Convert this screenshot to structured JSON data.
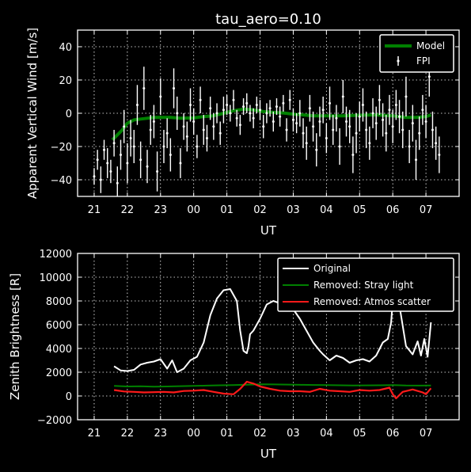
{
  "colors": {
    "background": "#000000",
    "foreground": "#ffffff",
    "model": "#008000",
    "stray": "#008000",
    "atmos": "#ff1a1a",
    "original": "#ffffff"
  },
  "chart_data": [
    {
      "type": "line",
      "title": "tau_aero=0.10",
      "xlabel": "UT",
      "ylabel": "Apparent Vertical Wind [m/s]",
      "xtick_labels": [
        "21",
        "22",
        "23",
        "00",
        "01",
        "02",
        "03",
        "04",
        "05",
        "06",
        "07"
      ],
      "xlim": [
        20.5,
        32.0
      ],
      "ylim": [
        -50,
        50
      ],
      "yticks": [
        -40,
        -20,
        0,
        20,
        40
      ],
      "ytick_labels": [
        "−40",
        "−20",
        "0",
        "20",
        "40"
      ],
      "grid": true,
      "legend_position": "top-right",
      "legend": [
        "Model",
        "FPI"
      ],
      "series": [
        {
          "name": "Model",
          "x": [
            21.55,
            21.7,
            21.85,
            22.0,
            22.2,
            22.4,
            22.6,
            22.8,
            23.0,
            23.3,
            23.6,
            24.0,
            24.3,
            24.6,
            24.9,
            25.2,
            25.5,
            25.8,
            26.1,
            26.4,
            26.7,
            27.0,
            27.3,
            27.6,
            28.0,
            28.5,
            29.0,
            29.5,
            30.0,
            30.4,
            30.7,
            31.0,
            31.15
          ],
          "y": [
            -16,
            -13,
            -10,
            -6,
            -4,
            -3.5,
            -3,
            -2.5,
            -2.5,
            -2.5,
            -3,
            -2.8,
            -2,
            -1.5,
            0,
            1.5,
            2.5,
            2,
            1,
            0.5,
            0.2,
            -0.5,
            -1,
            -1.5,
            -1.5,
            -1.5,
            -1.2,
            -1,
            -1.5,
            -2.5,
            -2.5,
            -2,
            -1
          ]
        },
        {
          "name": "FPI",
          "x": [
            21.0,
            21.1,
            21.2,
            21.3,
            21.4,
            21.5,
            21.6,
            21.7,
            21.8,
            21.9,
            22.0,
            22.1,
            22.2,
            22.3,
            22.4,
            22.5,
            22.6,
            22.7,
            22.8,
            22.9,
            23.0,
            23.1,
            23.2,
            23.3,
            23.4,
            23.5,
            23.6,
            23.7,
            23.8,
            23.9,
            24.0,
            24.1,
            24.2,
            24.3,
            24.4,
            24.5,
            24.6,
            24.7,
            24.8,
            24.9,
            25.0,
            25.1,
            25.2,
            25.3,
            25.4,
            25.5,
            25.6,
            25.7,
            25.8,
            25.9,
            26.0,
            26.1,
            26.2,
            26.3,
            26.4,
            26.5,
            26.6,
            26.7,
            26.8,
            26.9,
            27.0,
            27.1,
            27.2,
            27.3,
            27.4,
            27.5,
            27.6,
            27.7,
            27.8,
            27.9,
            28.0,
            28.1,
            28.2,
            28.3,
            28.4,
            28.5,
            28.6,
            28.7,
            28.8,
            28.9,
            29.0,
            29.1,
            29.2,
            29.3,
            29.4,
            29.5,
            29.6,
            29.7,
            29.8,
            29.9,
            30.0,
            30.1,
            30.2,
            30.3,
            30.4,
            30.5,
            30.6,
            30.7,
            30.8,
            30.9,
            31.0,
            31.1,
            31.2,
            31.3,
            31.4
          ],
          "y": [
            -38,
            -28,
            -40,
            -22,
            -30,
            -35,
            -18,
            -42,
            -25,
            -8,
            -30,
            -15,
            -20,
            5,
            -28,
            15,
            -32,
            -10,
            -5,
            -35,
            10,
            -20,
            -12,
            -25,
            15,
            0,
            -30,
            -8,
            -14,
            5,
            -5,
            -20,
            8,
            -10,
            -15,
            3,
            -8,
            0,
            -12,
            2,
            5,
            0,
            8,
            -3,
            -7,
            4,
            6,
            0,
            -3,
            5,
            2,
            -8,
            0,
            3,
            -5,
            4,
            -2,
            6,
            -10,
            8,
            -4,
            -6,
            0,
            -12,
            -18,
            3,
            -8,
            -22,
            -5,
            2,
            -15,
            6,
            -10,
            -3,
            -20,
            10,
            -5,
            -8,
            -25,
            -12,
            -2,
            5,
            -10,
            -18,
            0,
            -6,
            8,
            -4,
            -12,
            2,
            -8,
            5,
            -2,
            -10,
            10,
            -20,
            -6,
            -28,
            -12,
            2,
            -5,
            22,
            -10,
            -18,
            -25
          ],
          "err": [
            5,
            6,
            8,
            6,
            9,
            7,
            8,
            10,
            9,
            10,
            12,
            11,
            10,
            12,
            11,
            13,
            10,
            9,
            10,
            12,
            11,
            10,
            9,
            10,
            12,
            10,
            9,
            8,
            9,
            10,
            8,
            7,
            8,
            9,
            8,
            7,
            8,
            6,
            7,
            8,
            6,
            5,
            6,
            5,
            6,
            5,
            6,
            5,
            6,
            5,
            6,
            7,
            6,
            5,
            6,
            5,
            6,
            5,
            7,
            6,
            7,
            6,
            8,
            9,
            10,
            8,
            9,
            10,
            9,
            8,
            9,
            10,
            9,
            8,
            11,
            10,
            9,
            10,
            11,
            12,
            9,
            10,
            11,
            10,
            9,
            10,
            9,
            10,
            11,
            9,
            10,
            9,
            10,
            11,
            12,
            10,
            11,
            12,
            10,
            9,
            10,
            12,
            11,
            10,
            11
          ]
        }
      ]
    },
    {
      "type": "line",
      "title": "",
      "xlabel": "UT",
      "ylabel": "Zenith Brightness [R]",
      "xtick_labels": [
        "21",
        "22",
        "23",
        "00",
        "01",
        "02",
        "03",
        "04",
        "05",
        "06",
        "07"
      ],
      "xlim": [
        20.5,
        32.0
      ],
      "ylim": [
        -2000,
        12000
      ],
      "yticks": [
        -2000,
        0,
        2000,
        4000,
        6000,
        8000,
        10000,
        12000
      ],
      "ytick_labels": [
        "−2000",
        "0",
        "2000",
        "4000",
        "6000",
        "8000",
        "10000",
        "12000"
      ],
      "grid": true,
      "legend_position": "top-right",
      "legend": [
        "Original",
        "Removed: Stray light",
        "Removed: Atmos scatter"
      ],
      "series": [
        {
          "name": "Original",
          "x": [
            21.6,
            21.8,
            22.0,
            22.2,
            22.4,
            22.6,
            22.8,
            23.0,
            23.2,
            23.35,
            23.5,
            23.7,
            23.9,
            24.1,
            24.3,
            24.5,
            24.7,
            24.9,
            25.1,
            25.3,
            25.4,
            25.5,
            25.6,
            25.65,
            25.7,
            25.8,
            26.0,
            26.2,
            26.4,
            26.6,
            26.8,
            27.0,
            27.2,
            27.4,
            27.6,
            27.8,
            27.9,
            28.1,
            28.3,
            28.5,
            28.7,
            28.9,
            29.1,
            29.3,
            29.5,
            29.7,
            29.85,
            29.95,
            30.05,
            30.2,
            30.4,
            30.6,
            30.75,
            30.85,
            30.95,
            31.05,
            31.15
          ],
          "y": [
            2500,
            2150,
            2100,
            2200,
            2650,
            2800,
            2900,
            3100,
            2300,
            3000,
            2000,
            2300,
            3000,
            3300,
            4500,
            6800,
            8200,
            8900,
            9000,
            8000,
            5500,
            3800,
            3600,
            4200,
            5200,
            5500,
            6500,
            7700,
            8000,
            7800,
            7900,
            7300,
            6500,
            5500,
            4500,
            3800,
            3500,
            3000,
            3400,
            3200,
            2800,
            3000,
            3100,
            2900,
            3400,
            4500,
            4800,
            6200,
            9900,
            7600,
            4200,
            3500,
            4600,
            3400,
            4800,
            3300,
            6200
          ]
        },
        {
          "name": "Removed: Stray light",
          "x": [
            21.6,
            22.0,
            22.4,
            22.8,
            23.2,
            23.6,
            24.0,
            24.4,
            24.8,
            25.2,
            25.6,
            26.0,
            26.4,
            26.8,
            27.2,
            27.6,
            28.0,
            28.4,
            28.8,
            29.2,
            29.6,
            30.0,
            30.4,
            30.8,
            31.15
          ],
          "y": [
            850,
            800,
            820,
            780,
            800,
            830,
            850,
            870,
            900,
            920,
            950,
            980,
            970,
            960,
            940,
            930,
            920,
            900,
            880,
            890,
            900,
            920,
            880,
            870,
            880
          ]
        },
        {
          "name": "Removed: Atmos scatter",
          "x": [
            21.6,
            21.9,
            22.2,
            22.5,
            22.8,
            23.1,
            23.4,
            23.7,
            24.0,
            24.3,
            24.6,
            24.9,
            25.2,
            25.4,
            25.6,
            25.8,
            26.0,
            26.3,
            26.6,
            26.9,
            27.2,
            27.5,
            27.8,
            28.1,
            28.4,
            28.7,
            29.0,
            29.3,
            29.6,
            29.9,
            30.0,
            30.1,
            30.3,
            30.6,
            30.9,
            31.0,
            31.15
          ],
          "y": [
            500,
            380,
            350,
            300,
            320,
            350,
            300,
            420,
            450,
            500,
            350,
            200,
            150,
            600,
            1200,
            1050,
            800,
            600,
            450,
            400,
            400,
            350,
            600,
            450,
            400,
            350,
            500,
            450,
            500,
            700,
            150,
            -200,
            350,
            550,
            300,
            150,
            650
          ]
        }
      ]
    }
  ]
}
